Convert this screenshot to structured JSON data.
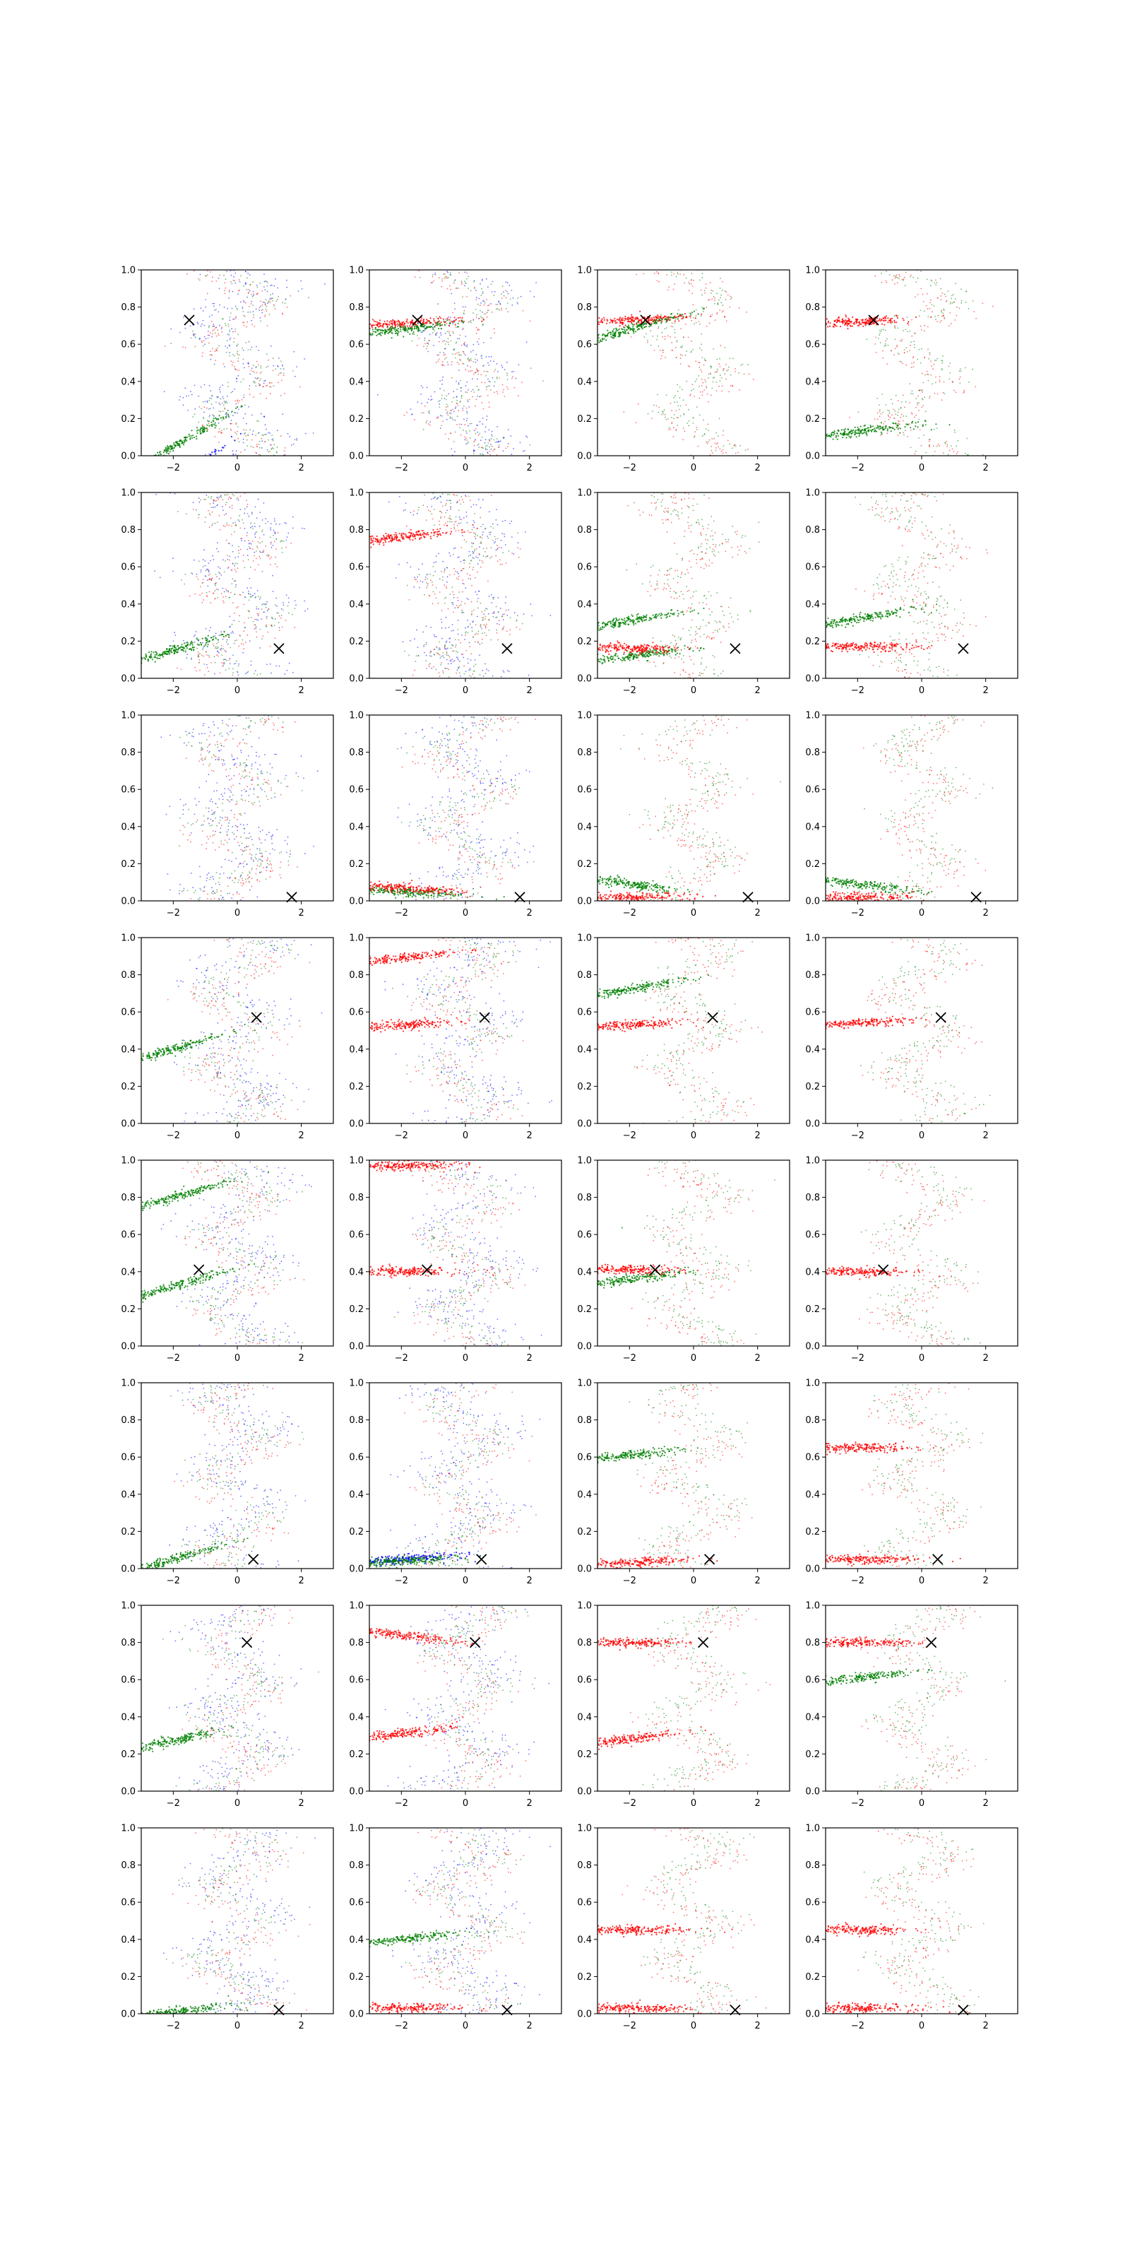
{
  "figure": {
    "rows": 8,
    "cols": 4,
    "background": "#ffffff"
  },
  "colors": {
    "blue": "#0000ff",
    "green": "#008000",
    "red": "#ff0000",
    "marker": "#000000"
  },
  "chart_data": {
    "type": "scatter",
    "xlim": [
      -3,
      3
    ],
    "ylim": [
      0,
      1
    ],
    "xticks": [
      -2,
      0,
      2
    ],
    "yticks": [
      0.0,
      0.2,
      0.4,
      0.6,
      0.8,
      1.0
    ],
    "xtick_labels": [
      "−2",
      "0",
      "2"
    ],
    "ytick_labels": [
      "0.0",
      "0.2",
      "0.4",
      "0.6",
      "0.8",
      "1.0"
    ],
    "grid": false,
    "legend": "none",
    "column_series": [
      [
        "blue",
        "green",
        "red"
      ],
      [
        "blue",
        "green",
        "red"
      ],
      [
        "green",
        "red"
      ],
      [
        "green",
        "red"
      ]
    ],
    "row_markers": [
      {
        "x": -1.5,
        "y": 0.73
      },
      {
        "x": 1.3,
        "y": 0.16
      },
      {
        "x": 1.7,
        "y": 0.02
      },
      {
        "x": 0.6,
        "y": 0.57
      },
      {
        "x": -1.2,
        "y": 0.41
      },
      {
        "x": 0.5,
        "y": 0.05
      },
      {
        "x": 0.3,
        "y": 0.8
      },
      {
        "x": 1.3,
        "y": 0.02
      }
    ],
    "bands": [
      {
        "row": 0,
        "col": 0,
        "series": "blue",
        "y": 0.1,
        "slope": 0.12
      },
      {
        "row": 0,
        "col": 0,
        "series": "green",
        "y": 0.25,
        "slope": 0.1
      },
      {
        "row": 0,
        "col": 1,
        "series": "red",
        "y": 0.73,
        "slope": 0.01
      },
      {
        "row": 0,
        "col": 1,
        "series": "green",
        "y": 0.72,
        "slope": 0.02
      },
      {
        "row": 0,
        "col": 2,
        "series": "red",
        "y": 0.75,
        "slope": 0.01
      },
      {
        "row": 0,
        "col": 2,
        "series": "green",
        "y": 0.78,
        "slope": 0.05
      },
      {
        "row": 0,
        "col": 3,
        "series": "red",
        "y": 0.74,
        "slope": 0.01
      },
      {
        "row": 0,
        "col": 3,
        "series": "green",
        "y": 0.17,
        "slope": 0.02
      },
      {
        "row": 1,
        "col": 0,
        "series": "green",
        "y": 0.25,
        "slope": 0.05
      },
      {
        "row": 1,
        "col": 1,
        "series": "red",
        "y": 0.8,
        "slope": 0.02
      },
      {
        "row": 1,
        "col": 2,
        "series": "green",
        "y": 0.37,
        "slope": 0.03
      },
      {
        "row": 1,
        "col": 2,
        "series": "green",
        "y": 0.16,
        "slope": 0.02
      },
      {
        "row": 1,
        "col": 2,
        "series": "red",
        "y": 0.16,
        "slope": 0.0
      },
      {
        "row": 1,
        "col": 3,
        "series": "green",
        "y": 0.38,
        "slope": 0.03
      },
      {
        "row": 1,
        "col": 3,
        "series": "red",
        "y": 0.17,
        "slope": 0.0
      },
      {
        "row": 2,
        "col": 1,
        "series": "green",
        "y": 0.03,
        "slope": -0.01
      },
      {
        "row": 2,
        "col": 1,
        "series": "red",
        "y": 0.05,
        "slope": -0.01
      },
      {
        "row": 2,
        "col": 2,
        "series": "green",
        "y": 0.05,
        "slope": -0.02
      },
      {
        "row": 2,
        "col": 2,
        "series": "red",
        "y": 0.02,
        "slope": 0.0
      },
      {
        "row": 2,
        "col": 3,
        "series": "green",
        "y": 0.05,
        "slope": -0.02
      },
      {
        "row": 2,
        "col": 3,
        "series": "red",
        "y": 0.02,
        "slope": 0.0
      },
      {
        "row": 3,
        "col": 0,
        "series": "green",
        "y": 0.5,
        "slope": 0.05
      },
      {
        "row": 3,
        "col": 1,
        "series": "red",
        "y": 0.93,
        "slope": 0.02
      },
      {
        "row": 3,
        "col": 1,
        "series": "red",
        "y": 0.55,
        "slope": 0.01
      },
      {
        "row": 3,
        "col": 2,
        "series": "red",
        "y": 0.55,
        "slope": 0.01
      },
      {
        "row": 3,
        "col": 2,
        "series": "green",
        "y": 0.78,
        "slope": 0.03
      },
      {
        "row": 3,
        "col": 3,
        "series": "red",
        "y": 0.56,
        "slope": 0.01
      },
      {
        "row": 4,
        "col": 0,
        "series": "green",
        "y": 0.42,
        "slope": 0.05
      },
      {
        "row": 4,
        "col": 0,
        "series": "green",
        "y": 0.9,
        "slope": 0.05
      },
      {
        "row": 4,
        "col": 1,
        "series": "red",
        "y": 0.4,
        "slope": 0.0
      },
      {
        "row": 4,
        "col": 1,
        "series": "red",
        "y": 0.97,
        "slope": 0.0
      },
      {
        "row": 4,
        "col": 2,
        "series": "green",
        "y": 0.4,
        "slope": 0.02
      },
      {
        "row": 4,
        "col": 2,
        "series": "red",
        "y": 0.41,
        "slope": 0.0
      },
      {
        "row": 4,
        "col": 3,
        "series": "red",
        "y": 0.4,
        "slope": 0.0
      },
      {
        "row": 5,
        "col": 0,
        "series": "green",
        "y": 0.15,
        "slope": 0.05
      },
      {
        "row": 5,
        "col": 1,
        "series": "blue",
        "y": 0.07,
        "slope": 0.01
      },
      {
        "row": 5,
        "col": 1,
        "series": "green",
        "y": 0.06,
        "slope": 0.01
      },
      {
        "row": 5,
        "col": 2,
        "series": "green",
        "y": 0.65,
        "slope": 0.02
      },
      {
        "row": 5,
        "col": 2,
        "series": "red",
        "y": 0.05,
        "slope": 0.01
      },
      {
        "row": 5,
        "col": 3,
        "series": "red",
        "y": 0.65,
        "slope": 0.0
      },
      {
        "row": 5,
        "col": 3,
        "series": "red",
        "y": 0.05,
        "slope": 0.0
      },
      {
        "row": 6,
        "col": 0,
        "series": "green",
        "y": 0.35,
        "slope": 0.04
      },
      {
        "row": 6,
        "col": 1,
        "series": "red",
        "y": 0.8,
        "slope": -0.02
      },
      {
        "row": 6,
        "col": 1,
        "series": "red",
        "y": 0.35,
        "slope": 0.02
      },
      {
        "row": 6,
        "col": 2,
        "series": "red",
        "y": 0.8,
        "slope": 0.0
      },
      {
        "row": 6,
        "col": 2,
        "series": "red",
        "y": 0.32,
        "slope": 0.02
      },
      {
        "row": 6,
        "col": 3,
        "series": "red",
        "y": 0.8,
        "slope": 0.0
      },
      {
        "row": 6,
        "col": 3,
        "series": "green",
        "y": 0.65,
        "slope": 0.02
      },
      {
        "row": 7,
        "col": 0,
        "series": "green",
        "y": 0.05,
        "slope": 0.02
      },
      {
        "row": 7,
        "col": 1,
        "series": "green",
        "y": 0.44,
        "slope": 0.02
      },
      {
        "row": 7,
        "col": 1,
        "series": "red",
        "y": 0.03,
        "slope": 0.0
      },
      {
        "row": 7,
        "col": 2,
        "series": "red",
        "y": 0.45,
        "slope": 0.0
      },
      {
        "row": 7,
        "col": 2,
        "series": "red",
        "y": 0.03,
        "slope": 0.0
      },
      {
        "row": 7,
        "col": 3,
        "series": "red",
        "y": 0.45,
        "slope": 0.0
      },
      {
        "row": 7,
        "col": 3,
        "series": "red",
        "y": 0.03,
        "slope": 0.0
      }
    ]
  }
}
